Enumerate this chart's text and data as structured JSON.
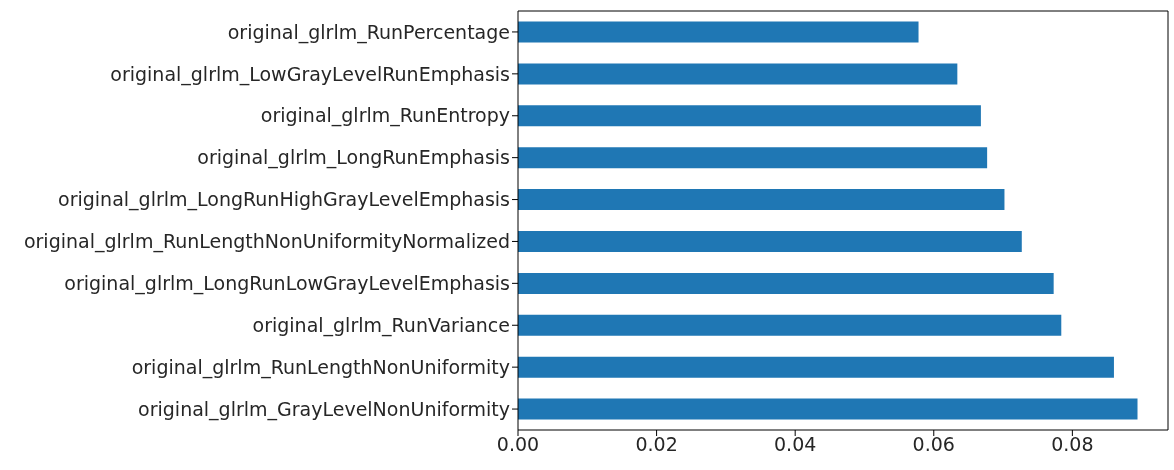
{
  "chart_data": {
    "type": "bar",
    "orientation": "horizontal",
    "categories": [
      "original_glrlm_RunPercentage",
      "original_glrlm_LowGrayLevelRunEmphasis",
      "original_glrlm_RunEntropy",
      "original_glrlm_LongRunEmphasis",
      "original_glrlm_LongRunHighGrayLevelEmphasis",
      "original_glrlm_RunLengthNonUniformityNormalized",
      "original_glrlm_LongRunLowGrayLevelEmphasis",
      "original_glrlm_RunVariance",
      "original_glrlm_RunLengthNonUniformity",
      "original_glrlm_GrayLevelNonUniformity"
    ],
    "values": [
      0.0578,
      0.0634,
      0.0668,
      0.0677,
      0.0702,
      0.0727,
      0.0773,
      0.0784,
      0.086,
      0.0894
    ],
    "color": "#1f77b4",
    "xlim": [
      0,
      0.0938
    ],
    "xticks": [
      {
        "value": 0,
        "label": "0.00"
      },
      {
        "value": 0.02,
        "label": "0.02"
      },
      {
        "value": 0.04,
        "label": "0.04"
      },
      {
        "value": 0.06,
        "label": "0.06"
      },
      {
        "value": 0.08,
        "label": "0.08"
      }
    ],
    "grid": false,
    "legend": false
  }
}
